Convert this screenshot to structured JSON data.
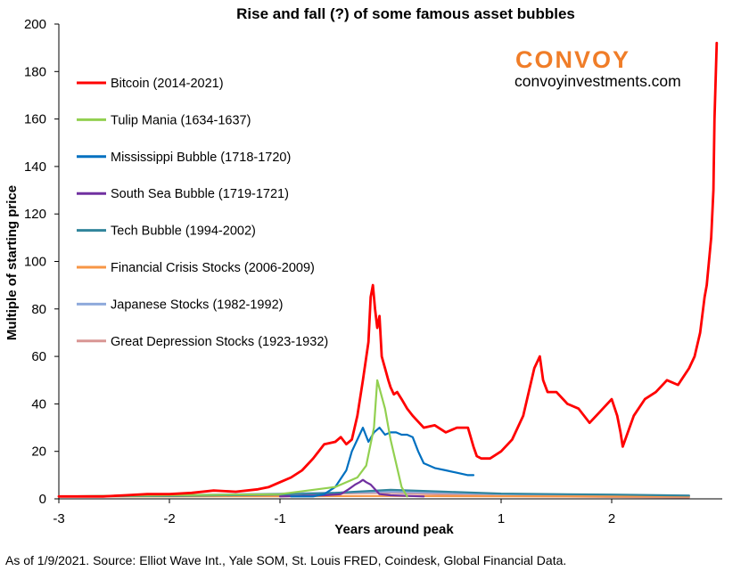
{
  "chart_data": {
    "type": "line",
    "title": "Rise and fall (?) of some famous asset bubbles",
    "xlabel": "Years around peak",
    "ylabel": "Multiple of starting price",
    "xlim": [
      -3,
      3
    ],
    "ylim": [
      0,
      200
    ],
    "x_ticks": [
      "-3",
      "-2",
      "-1",
      "1",
      "2"
    ],
    "y_ticks": [
      "0",
      "20",
      "40",
      "60",
      "80",
      "100",
      "120",
      "140",
      "160",
      "180",
      "200"
    ],
    "grid": false,
    "legend_position": "top-left",
    "series": [
      {
        "name": "Bitcoin (2014-2021)",
        "color": "#ff0000",
        "x": [
          -3,
          -2.8,
          -2.6,
          -2.4,
          -2.2,
          -2.0,
          -1.8,
          -1.6,
          -1.4,
          -1.2,
          -1.1,
          -1.0,
          -0.9,
          -0.8,
          -0.7,
          -0.6,
          -0.5,
          -0.45,
          -0.4,
          -0.35,
          -0.3,
          -0.25,
          -0.2,
          -0.18,
          -0.16,
          -0.14,
          -0.12,
          -0.1,
          -0.08,
          -0.05,
          -0.02,
          0.0,
          0.03,
          0.06,
          0.1,
          0.15,
          0.2,
          0.3,
          0.4,
          0.5,
          0.6,
          0.7,
          0.75,
          0.78,
          0.82,
          0.9,
          1.0,
          1.1,
          1.2,
          1.3,
          1.35,
          1.38,
          1.42,
          1.5,
          1.6,
          1.7,
          1.8,
          1.9,
          2.0,
          2.05,
          2.08,
          2.1,
          2.2,
          2.3,
          2.4,
          2.5,
          2.6,
          2.7,
          2.75,
          2.8,
          2.84,
          2.86,
          2.88,
          2.9,
          2.92,
          2.93,
          2.95
        ],
        "y": [
          1,
          1,
          1,
          1.5,
          2,
          2,
          2.5,
          3.5,
          3,
          4,
          5,
          7,
          9,
          12,
          17,
          23,
          24,
          26,
          23,
          25,
          35,
          50,
          66,
          85,
          90,
          80,
          72,
          77,
          60,
          55,
          50,
          47,
          44,
          45,
          42,
          38,
          35,
          30,
          31,
          28,
          30,
          30,
          22,
          18,
          17,
          17,
          20,
          25,
          35,
          55,
          60,
          50,
          45,
          45,
          40,
          38,
          32,
          37,
          42,
          35,
          28,
          22,
          35,
          42,
          45,
          50,
          48,
          55,
          60,
          70,
          85,
          90,
          100,
          110,
          130,
          160,
          192
        ]
      },
      {
        "name": "Tulip Mania (1634-1637)",
        "color": "#92d050",
        "x": [
          -3,
          -2,
          -1,
          -0.5,
          -0.3,
          -0.22,
          -0.15,
          -0.12,
          -0.05,
          0.0,
          0.05,
          0.1,
          0.15
        ],
        "y": [
          1,
          1.5,
          2,
          5,
          9,
          14,
          30,
          50,
          38,
          25,
          15,
          5,
          1
        ]
      },
      {
        "name": "Mississippi Bubble (1718-1720)",
        "color": "#0070c0",
        "x": [
          -0.9,
          -0.7,
          -0.6,
          -0.5,
          -0.4,
          -0.35,
          -0.3,
          -0.25,
          -0.2,
          -0.15,
          -0.1,
          -0.05,
          0.0,
          0.05,
          0.1,
          0.15,
          0.2,
          0.25,
          0.3,
          0.4,
          0.5,
          0.6,
          0.7,
          0.75
        ],
        "y": [
          1,
          1,
          2,
          5,
          12,
          20,
          25,
          30,
          24,
          28,
          30,
          27,
          28,
          28,
          27,
          27,
          26,
          20,
          15,
          13,
          12,
          11,
          10,
          10
        ]
      },
      {
        "name": "South Sea Bubble (1719-1721)",
        "color": "#7030a0",
        "x": [
          -1.0,
          -0.6,
          -0.45,
          -0.38,
          -0.32,
          -0.28,
          -0.25,
          -0.22,
          -0.18,
          -0.14,
          -0.1,
          0.0,
          0.3
        ],
        "y": [
          1,
          1.5,
          2,
          4,
          6,
          7,
          8,
          7,
          6,
          4,
          2,
          1.5,
          1
        ]
      },
      {
        "name": "Tech Bubble (1994-2002)",
        "color": "#31859c",
        "x": [
          -3,
          -2,
          -1,
          -0.5,
          0,
          0.5,
          1,
          1.5,
          2,
          2.5,
          2.7
        ],
        "y": [
          1,
          1.2,
          1.8,
          2.5,
          3.8,
          3.0,
          2.2,
          2.0,
          1.8,
          1.5,
          1.4
        ]
      },
      {
        "name": "Financial Crisis Stocks (2006-2009)",
        "color": "#f79646",
        "x": [
          -3,
          -2,
          -1,
          0,
          1,
          2,
          2.7
        ],
        "y": [
          1,
          1,
          1.1,
          1.2,
          1.1,
          1.0,
          1.0
        ]
      },
      {
        "name": "Japanese Stocks (1982-1992)",
        "color": "#8eaadb",
        "x": [
          -3,
          -2,
          -1,
          0,
          0.5,
          1,
          2,
          2.7
        ],
        "y": [
          1,
          1.5,
          2.2,
          3,
          2.5,
          2,
          1.5,
          1.4
        ]
      },
      {
        "name": "Great Depression Stocks (1923-1932)",
        "color": "#d99694",
        "x": [
          -3,
          -2,
          -1,
          0,
          0.5,
          1,
          2,
          2.7
        ],
        "y": [
          1,
          1.5,
          2,
          2.5,
          1.8,
          1.2,
          0.8,
          0.6
        ]
      }
    ]
  },
  "branding": {
    "logo_text": "CONVOY",
    "logo_color": "#f07d28",
    "url": "convoyinvestments.com"
  },
  "footer": {
    "source": "As of 1/9/2021. Source: Elliot Wave Int., Yale SOM, St. Louis FRED, Coindesk, Global Financial Data."
  }
}
